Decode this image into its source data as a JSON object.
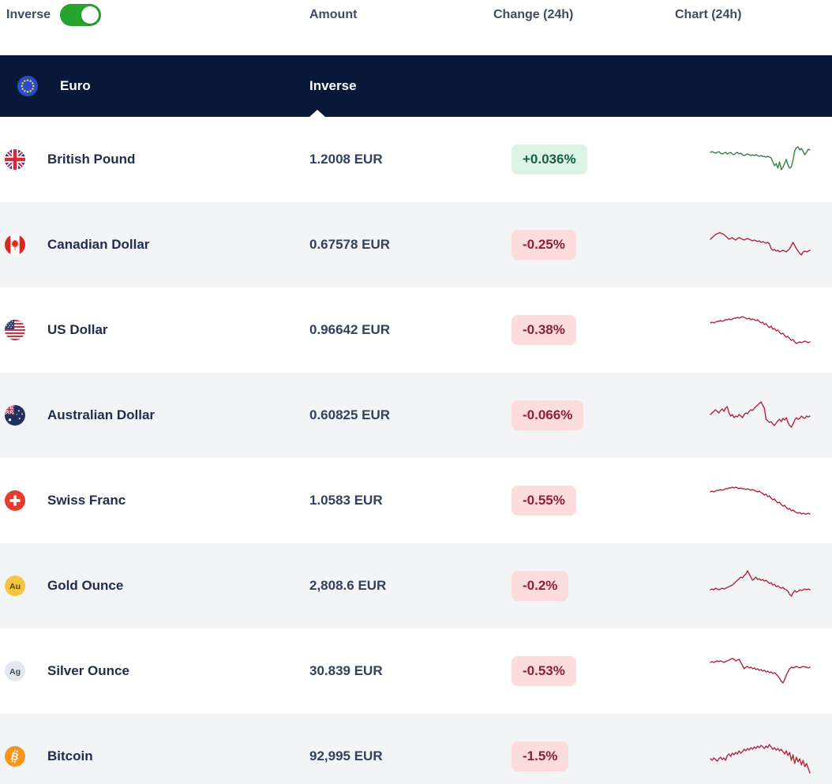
{
  "toggle": {
    "label": "Inverse",
    "state": "on"
  },
  "columns": {
    "amount": "Amount",
    "change": "Change (24h)",
    "chart": "Chart (24h)"
  },
  "base_row": {
    "name": "Euro",
    "icon": "eu-flag-icon",
    "amount_label": "Inverse"
  },
  "colors": {
    "navy_header": "#071838",
    "alt_row": "#f3f4f6",
    "toggle_green": "#28a52e",
    "badge_positive_bg": "#dcf3e6",
    "badge_positive_text": "#17613c",
    "badge_negative_bg": "#fcdcdc",
    "badge_negative_text": "#8c2136",
    "spark_up": "#2e8540",
    "spark_down": "#b1253d"
  },
  "rows": [
    {
      "name": "British Pound",
      "icon": "uk-flag-icon",
      "amount": "1.2008 EUR",
      "change": "+0.036%",
      "direction": "up",
      "spark": [
        16,
        15,
        16,
        17,
        16,
        15,
        17,
        18,
        17,
        16,
        18,
        17,
        16,
        18,
        19,
        17,
        16,
        18,
        17,
        19,
        20,
        19,
        18,
        19,
        20,
        19,
        20,
        19,
        20,
        21,
        20,
        21,
        21,
        22,
        21,
        22,
        23,
        28,
        33,
        30,
        36,
        28,
        38,
        35,
        30,
        25,
        32,
        36,
        34,
        26,
        14,
        10,
        9,
        13,
        11,
        15,
        19,
        16,
        12,
        13
      ]
    },
    {
      "name": "Canadian Dollar",
      "icon": "canada-flag-icon",
      "amount": "0.67578 EUR",
      "change": "-0.25%",
      "direction": "down",
      "spark": [
        18,
        16,
        14,
        12,
        11,
        10,
        10,
        11,
        12,
        14,
        16,
        18,
        17,
        16,
        18,
        19,
        17,
        16,
        17,
        18,
        19,
        18,
        17,
        18,
        19,
        20,
        19,
        20,
        21,
        20,
        22,
        21,
        22,
        23,
        22,
        24,
        30,
        32,
        31,
        33,
        32,
        34,
        33,
        32,
        33,
        34,
        32,
        30,
        26,
        22,
        26,
        30,
        33,
        36,
        38,
        34,
        33,
        34,
        33,
        32
      ]
    },
    {
      "name": "US Dollar",
      "icon": "us-flag-icon",
      "amount": "0.96642 EUR",
      "change": "-0.38%",
      "direction": "down",
      "spark": [
        16,
        15,
        16,
        15,
        14,
        14,
        13,
        14,
        13,
        12,
        12,
        11,
        12,
        11,
        10,
        10,
        9,
        10,
        9,
        8,
        9,
        10,
        11,
        10,
        12,
        11,
        12,
        13,
        12,
        14,
        16,
        15,
        18,
        17,
        20,
        22,
        20,
        24,
        23,
        26,
        25,
        28,
        30,
        29,
        32,
        34,
        33,
        36,
        38,
        37,
        40,
        42,
        41,
        40,
        41,
        40,
        39,
        40,
        41,
        40
      ]
    },
    {
      "name": "Australian Dollar",
      "icon": "australia-flag-icon",
      "amount": "0.60825 EUR",
      "change": "-0.066%",
      "direction": "down",
      "spark": [
        24,
        22,
        20,
        18,
        20,
        22,
        19,
        17,
        20,
        16,
        14,
        22,
        26,
        24,
        28,
        26,
        27,
        24,
        26,
        28,
        24,
        22,
        23,
        20,
        18,
        19,
        16,
        14,
        12,
        10,
        8,
        12,
        16,
        30,
        32,
        34,
        33,
        36,
        38,
        35,
        32,
        30,
        33,
        29,
        31,
        28,
        34,
        38,
        40,
        36,
        31,
        28,
        30,
        29,
        26,
        28,
        29,
        26,
        27,
        26
      ]
    },
    {
      "name": "Swiss Franc",
      "icon": "switzerland-flag-icon",
      "amount": "1.0583 EUR",
      "change": "-0.55%",
      "direction": "down",
      "spark": [
        14,
        13,
        14,
        13,
        12,
        12,
        11,
        12,
        11,
        10,
        10,
        9,
        9,
        8,
        9,
        8,
        9,
        10,
        9,
        10,
        10,
        11,
        10,
        11,
        12,
        11,
        12,
        13,
        14,
        13,
        15,
        16,
        18,
        17,
        20,
        19,
        22,
        24,
        23,
        26,
        28,
        27,
        30,
        32,
        31,
        34,
        36,
        35,
        38,
        37,
        39,
        40,
        41,
        40,
        42,
        41,
        42,
        42,
        41,
        42
      ]
    },
    {
      "name": "Gold Ounce",
      "icon": "gold-icon",
      "amount": "2,808.6 EUR",
      "change": "-0.2%",
      "direction": "down",
      "spark": [
        30,
        29,
        30,
        28,
        29,
        30,
        29,
        28,
        29,
        28,
        27,
        26,
        25,
        24,
        22,
        20,
        18,
        16,
        14,
        15,
        12,
        10,
        6,
        10,
        14,
        18,
        16,
        14,
        17,
        16,
        18,
        17,
        19,
        18,
        20,
        22,
        21,
        24,
        23,
        26,
        25,
        27,
        28,
        27,
        29,
        30,
        32,
        36,
        38,
        34,
        31,
        33,
        32,
        30,
        31,
        30,
        29,
        30,
        29,
        30
      ]
    },
    {
      "name": "Silver Ounce",
      "icon": "silver-icon",
      "amount": "30.839 EUR",
      "change": "-0.53%",
      "direction": "down",
      "spark": [
        14,
        13,
        14,
        13,
        12,
        13,
        12,
        13,
        14,
        13,
        12,
        11,
        10,
        9,
        10,
        12,
        11,
        10,
        14,
        18,
        22,
        20,
        19,
        21,
        20,
        22,
        21,
        23,
        22,
        24,
        23,
        25,
        24,
        26,
        25,
        27,
        26,
        28,
        27,
        29,
        31,
        34,
        38,
        40,
        36,
        30,
        26,
        22,
        20,
        21,
        20,
        19,
        20,
        21,
        20,
        19,
        20,
        20,
        21,
        20
      ]
    },
    {
      "name": "Bitcoin",
      "icon": "bitcoin-icon",
      "amount": "92,995 EUR",
      "change": "-1.5%",
      "direction": "down",
      "spark": [
        28,
        30,
        27,
        29,
        31,
        28,
        26,
        29,
        27,
        30,
        24,
        22,
        25,
        21,
        23,
        20,
        22,
        18,
        21,
        19,
        16,
        18,
        15,
        17,
        14,
        16,
        13,
        15,
        12,
        14,
        11,
        13,
        15,
        12,
        14,
        10,
        13,
        16,
        14,
        17,
        15,
        18,
        16,
        19,
        22,
        18,
        24,
        20,
        30,
        23,
        34,
        26,
        32,
        28,
        36,
        30,
        38,
        34,
        40,
        46
      ]
    }
  ]
}
